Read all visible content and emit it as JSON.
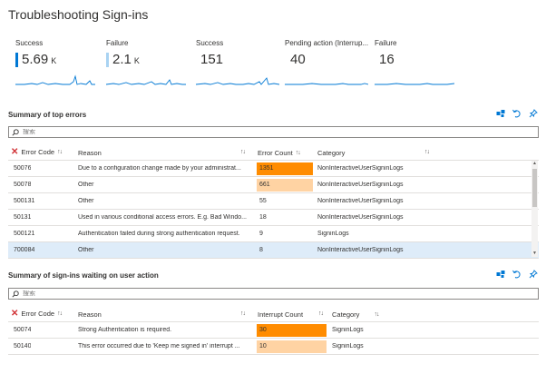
{
  "page": {
    "title": "Troubleshooting Sign-ins"
  },
  "kpis": [
    {
      "label": "Success",
      "value": "5.69",
      "unit": "K",
      "marker_color": "#0078d4"
    },
    {
      "label": "Failure",
      "value": "2.1",
      "unit": "K",
      "marker_color": "#a9d3f2"
    },
    {
      "label": "Success",
      "value": "151",
      "unit": ""
    },
    {
      "label": "Pending action (Interrup...",
      "value": "40",
      "unit": ""
    },
    {
      "label": "Failure",
      "value": "16",
      "unit": ""
    }
  ],
  "top_errors": {
    "title": "Summary of top errors",
    "search_placeholder": "搜索",
    "columns": {
      "code": "Error Code",
      "reason": "Reason",
      "count": "Error Count",
      "category": "Category"
    },
    "rows": [
      {
        "code": "50076",
        "reason": "Due to a configuration change made by your administrat...",
        "count": "1351",
        "category": "NonInteractiveUserSigninLogs",
        "heat": "#ff8c00"
      },
      {
        "code": "50078",
        "reason": "Other",
        "count": "661",
        "category": "NonInteractiveUserSigninLogs",
        "heat": "#ffd3a3"
      },
      {
        "code": "500131",
        "reason": "Other",
        "count": "55",
        "category": "NonInteractiveUserSigninLogs",
        "heat": ""
      },
      {
        "code": "50131",
        "reason": "Used in various conditional access errors. E.g. Bad Windo...",
        "count": "18",
        "category": "NonInteractiveUserSigninLogs",
        "heat": ""
      },
      {
        "code": "500121",
        "reason": "Authentication failed during strong authentication request.",
        "count": "9",
        "category": "SigninLogs",
        "heat": ""
      },
      {
        "code": "700084",
        "reason": "Other",
        "count": "8",
        "category": "NonInteractiveUserSigninLogs",
        "heat": ""
      }
    ],
    "selected_row": "700084"
  },
  "waiting": {
    "title": "Summary of sign-ins waiting on user action",
    "search_placeholder": "搜索",
    "columns": {
      "code": "Error Code",
      "reason": "Reason",
      "count": "Interrupt Count",
      "category": "Category"
    },
    "rows": [
      {
        "code": "50074",
        "reason": "Strong Authentication is required.",
        "count": "30",
        "category": "SigninLogs",
        "heat": "#ff8c00"
      },
      {
        "code": "50140",
        "reason": "This error occurred due to 'Keep me signed in' interrupt ...",
        "count": "10",
        "category": "SigninLogs",
        "heat": "#ffd3a3"
      }
    ]
  },
  "icons": {
    "section_actions": [
      "graph-icon",
      "undo-icon",
      "pin-icon"
    ],
    "accent": "#0078d4",
    "error_x": "#d13438"
  }
}
